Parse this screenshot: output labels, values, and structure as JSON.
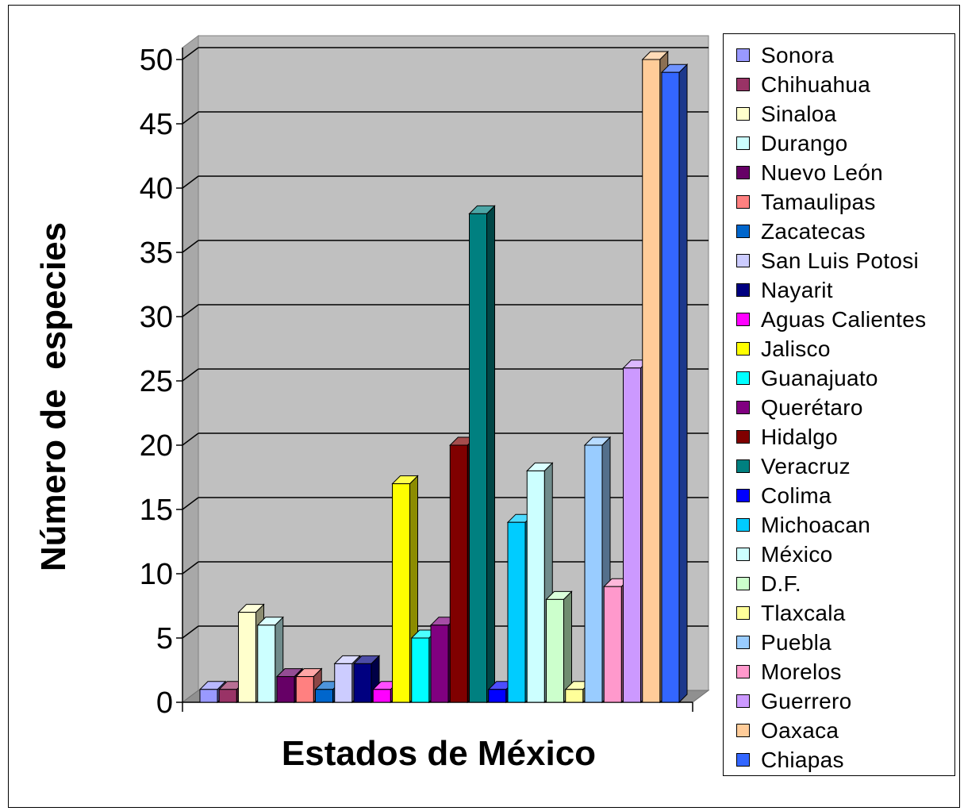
{
  "chart_data": {
    "type": "bar",
    "xlabel": "Estados de México",
    "ylabel": "Número de  especies",
    "ylim": [
      0,
      50
    ],
    "yticks": [
      0,
      5,
      10,
      15,
      20,
      25,
      30,
      35,
      40,
      45,
      50
    ],
    "grid": true,
    "legend_position": "right",
    "series": [
      {
        "name": "Sonora",
        "value": 1,
        "color": "#9999ff"
      },
      {
        "name": "Chihuahua",
        "value": 1,
        "color": "#993366"
      },
      {
        "name": "Sinaloa",
        "value": 7,
        "color": "#ffffcc"
      },
      {
        "name": "Durango",
        "value": 6,
        "color": "#ccffff"
      },
      {
        "name": "Nuevo León",
        "value": 2,
        "color": "#660066"
      },
      {
        "name": "Tamaulipas",
        "value": 2,
        "color": "#ff8080"
      },
      {
        "name": "Zacatecas",
        "value": 1,
        "color": "#0066cc"
      },
      {
        "name": "San Luis Potosi",
        "value": 3,
        "color": "#ccccff"
      },
      {
        "name": "Nayarit",
        "value": 3,
        "color": "#000080"
      },
      {
        "name": "Aguas Calientes",
        "value": 1,
        "color": "#ff00ff"
      },
      {
        "name": "Jalisco",
        "value": 17,
        "color": "#ffff00"
      },
      {
        "name": "Guanajuato",
        "value": 5,
        "color": "#00ffff"
      },
      {
        "name": "Querétaro",
        "value": 6,
        "color": "#800080"
      },
      {
        "name": "Hidalgo",
        "value": 20,
        "color": "#800000"
      },
      {
        "name": "Veracruz",
        "value": 38,
        "color": "#008080"
      },
      {
        "name": "Colima",
        "value": 1,
        "color": "#0000ff"
      },
      {
        "name": "Michoacan",
        "value": 14,
        "color": "#00ccff"
      },
      {
        "name": "México",
        "value": 18,
        "color": "#ccffff"
      },
      {
        "name": "D.F.",
        "value": 8,
        "color": "#ccffcc"
      },
      {
        "name": "Tlaxcala",
        "value": 1,
        "color": "#ffff99"
      },
      {
        "name": "Puebla",
        "value": 20,
        "color": "#99ccff"
      },
      {
        "name": "Morelos",
        "value": 9,
        "color": "#ff99cc"
      },
      {
        "name": "Guerrero",
        "value": 26,
        "color": "#cc99ff"
      },
      {
        "name": "Oaxaca",
        "value": 50,
        "color": "#ffcc99"
      },
      {
        "name": "Chiapas",
        "value": 49,
        "color": "#3366ff"
      }
    ]
  }
}
